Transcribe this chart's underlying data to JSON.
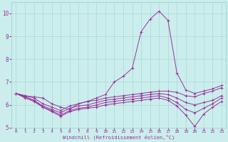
{
  "xlabel": "Windchill (Refroidissement éolien,°C)",
  "xlim": [
    -0.5,
    23.5
  ],
  "ylim": [
    5,
    10.5
  ],
  "yticks": [
    5,
    6,
    7,
    8,
    9,
    10
  ],
  "xticks": [
    0,
    1,
    2,
    3,
    4,
    5,
    6,
    7,
    8,
    9,
    10,
    11,
    12,
    13,
    14,
    15,
    16,
    17,
    18,
    19,
    20,
    21,
    22,
    23
  ],
  "bg_color": "#cbeeed",
  "grid_color": "#a8d8d8",
  "line_color": "#993399",
  "lines": [
    {
      "x": [
        0,
        1,
        2,
        3,
        4,
        5,
        6,
        7,
        8,
        9,
        10,
        11,
        12,
        13,
        14,
        15,
        16,
        17,
        18,
        19,
        20,
        21,
        22,
        23
      ],
      "y": [
        6.5,
        6.4,
        6.35,
        6.3,
        6.05,
        5.9,
        5.8,
        6.05,
        6.15,
        6.3,
        6.45,
        7.0,
        7.25,
        7.6,
        9.2,
        9.75,
        10.1,
        9.7,
        7.4,
        6.65,
        6.5,
        6.6,
        6.7,
        6.85
      ]
    },
    {
      "x": [
        0,
        1,
        2,
        3,
        4,
        5,
        6,
        7,
        8,
        9,
        10,
        11,
        12,
        13,
        14,
        15,
        16,
        17,
        18,
        19,
        20,
        21,
        22,
        23
      ],
      "y": [
        6.5,
        6.4,
        6.3,
        6.05,
        5.9,
        5.75,
        5.95,
        6.05,
        6.15,
        6.2,
        6.3,
        6.35,
        6.4,
        6.45,
        6.5,
        6.55,
        6.6,
        6.6,
        6.55,
        6.4,
        6.35,
        6.5,
        6.6,
        6.75
      ]
    },
    {
      "x": [
        0,
        1,
        2,
        3,
        4,
        5,
        6,
        7,
        8,
        9,
        10,
        11,
        12,
        13,
        14,
        15,
        16,
        17,
        18,
        19,
        20,
        21,
        22,
        23
      ],
      "y": [
        6.5,
        6.35,
        6.2,
        5.95,
        5.8,
        5.65,
        5.85,
        5.95,
        6.0,
        6.1,
        6.2,
        6.25,
        6.3,
        6.35,
        6.4,
        6.45,
        6.5,
        6.45,
        6.3,
        6.1,
        6.0,
        6.1,
        6.2,
        6.4
      ]
    },
    {
      "x": [
        0,
        1,
        2,
        3,
        4,
        5,
        6,
        7,
        8,
        9,
        10,
        11,
        12,
        13,
        14,
        15,
        16,
        17,
        18,
        19,
        20,
        21,
        22,
        23
      ],
      "y": [
        6.5,
        6.3,
        6.15,
        5.9,
        5.75,
        5.55,
        5.75,
        5.85,
        5.9,
        6.0,
        6.1,
        6.15,
        6.2,
        6.25,
        6.3,
        6.35,
        6.4,
        6.3,
        6.1,
        5.8,
        5.65,
        5.85,
        6.05,
        6.3
      ]
    },
    {
      "x": [
        0,
        1,
        2,
        3,
        4,
        5,
        6,
        7,
        8,
        9,
        10,
        11,
        12,
        13,
        14,
        15,
        16,
        17,
        18,
        19,
        20,
        21,
        22,
        23
      ],
      "y": [
        6.5,
        6.35,
        6.2,
        5.9,
        5.7,
        5.5,
        5.7,
        5.8,
        5.85,
        5.9,
        6.0,
        6.05,
        6.1,
        6.15,
        6.2,
        6.25,
        6.3,
        6.2,
        5.95,
        5.55,
        5.05,
        5.6,
        5.9,
        6.15
      ]
    }
  ]
}
